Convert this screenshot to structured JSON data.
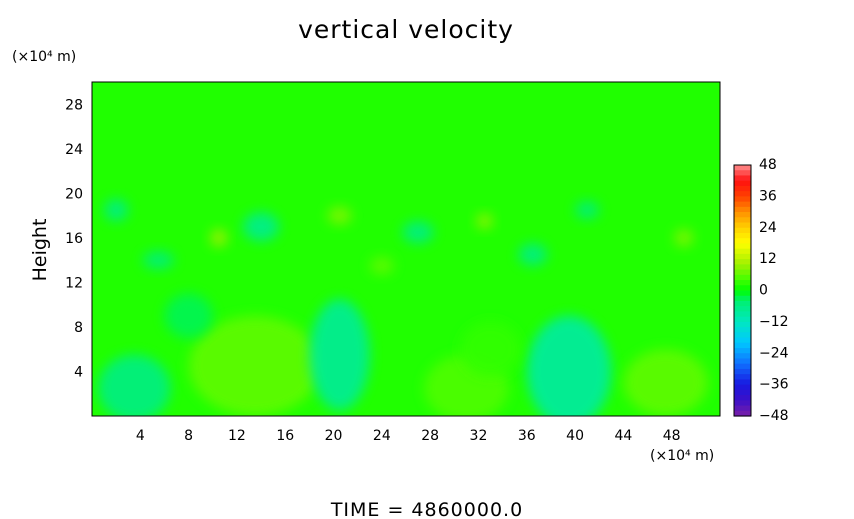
{
  "chart_data": {
    "type": "heatmap",
    "title": "vertical velocity",
    "ylabel": "Height",
    "x_unit": "(×10⁴ m)",
    "y_unit": "(×10⁴ m)",
    "xlim": [
      0,
      52
    ],
    "ylim": [
      0,
      30
    ],
    "xticks": [
      4,
      8,
      12,
      16,
      20,
      24,
      28,
      32,
      36,
      40,
      44,
      48
    ],
    "yticks": [
      4,
      8,
      12,
      16,
      20,
      24,
      28
    ],
    "background_value": 2,
    "colorbar": {
      "levels": [
        48,
        36,
        24,
        12,
        0,
        -12,
        -24,
        -36,
        -48
      ],
      "min": -48,
      "max": 48,
      "colors": [
        [
          -48,
          "#7a1fa8"
        ],
        [
          -42,
          "#3c10c8"
        ],
        [
          -36,
          "#1818e0"
        ],
        [
          -28,
          "#1070ff"
        ],
        [
          -20,
          "#00c8ff"
        ],
        [
          -12,
          "#00e8c0"
        ],
        [
          -4,
          "#00f070"
        ],
        [
          0,
          "#00ff00"
        ],
        [
          4,
          "#40ff00"
        ],
        [
          10,
          "#a0f000"
        ],
        [
          18,
          "#ffff00"
        ],
        [
          24,
          "#ffd000"
        ],
        [
          30,
          "#ff9000"
        ],
        [
          36,
          "#ff4000"
        ],
        [
          42,
          "#ff1010"
        ],
        [
          48,
          "#ff9090"
        ]
      ]
    },
    "features": [
      {
        "x": 3.5,
        "y": 2.5,
        "rx": 3,
        "ry": 3,
        "value": -6
      },
      {
        "x": 13.5,
        "y": 4.5,
        "rx": 5.5,
        "ry": 4.5,
        "value": 6
      },
      {
        "x": 20.5,
        "y": 5.5,
        "rx": 2.5,
        "ry": 5,
        "value": -8
      },
      {
        "x": 31,
        "y": 2.5,
        "rx": 3.5,
        "ry": 3,
        "value": 5
      },
      {
        "x": 39.5,
        "y": 4,
        "rx": 3.5,
        "ry": 5,
        "value": -9
      },
      {
        "x": 47.5,
        "y": 3,
        "rx": 3.5,
        "ry": 3,
        "value": 6
      },
      {
        "x": 8,
        "y": 9,
        "rx": 2,
        "ry": 2,
        "value": -3
      },
      {
        "x": 33,
        "y": 6,
        "rx": 2.5,
        "ry": 2.5,
        "value": 3
      },
      {
        "x": 2,
        "y": 18.5,
        "rx": 1,
        "ry": 1,
        "value": -6
      },
      {
        "x": 10.5,
        "y": 16,
        "rx": 0.7,
        "ry": 0.8,
        "value": 10
      },
      {
        "x": 14,
        "y": 17,
        "rx": 1.5,
        "ry": 1.3,
        "value": -7
      },
      {
        "x": 20.5,
        "y": 18,
        "rx": 1,
        "ry": 0.8,
        "value": 8
      },
      {
        "x": 27,
        "y": 16.5,
        "rx": 1.3,
        "ry": 1,
        "value": -6
      },
      {
        "x": 32.5,
        "y": 17.5,
        "rx": 0.7,
        "ry": 0.7,
        "value": 9
      },
      {
        "x": 36.5,
        "y": 14.5,
        "rx": 1.2,
        "ry": 1,
        "value": -6
      },
      {
        "x": 41,
        "y": 18.5,
        "rx": 1,
        "ry": 0.8,
        "value": -5
      },
      {
        "x": 49,
        "y": 16,
        "rx": 0.8,
        "ry": 0.8,
        "value": 8
      },
      {
        "x": 5.5,
        "y": 14,
        "rx": 1.3,
        "ry": 0.8,
        "value": -5
      },
      {
        "x": 24,
        "y": 13.5,
        "rx": 1,
        "ry": 0.8,
        "value": 6
      }
    ]
  },
  "footer": {
    "label": "TIME = 4860000.0"
  }
}
